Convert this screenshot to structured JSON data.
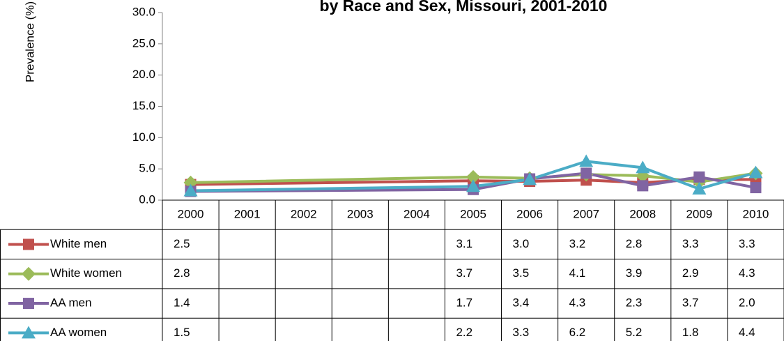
{
  "chart_data": {
    "type": "line",
    "title": "by Race and Sex, Missouri, 2001-2010",
    "y_label": "Prevalence (%)",
    "categories": [
      "2000",
      "2001",
      "2002",
      "2003",
      "2004",
      "2005",
      "2006",
      "2007",
      "2008",
      "2009",
      "2010"
    ],
    "series": [
      {
        "name": "White men",
        "color": "#c0504d",
        "marker": "square",
        "values": [
          2.5,
          null,
          null,
          null,
          null,
          3.1,
          3.0,
          3.2,
          2.8,
          3.3,
          3.3
        ],
        "value_labels": [
          "2.5",
          null,
          null,
          null,
          null,
          "3.1",
          "3.0",
          "3.2",
          "2.8",
          "3.3",
          "3.3"
        ]
      },
      {
        "name": "White women",
        "color": "#9bbb59",
        "marker": "diamond",
        "values": [
          2.8,
          null,
          null,
          null,
          null,
          3.7,
          3.5,
          4.1,
          3.9,
          2.9,
          4.3
        ],
        "value_labels": [
          "2.8",
          null,
          null,
          null,
          null,
          "3.7",
          "3.5",
          "4.1",
          "3.9",
          "2.9",
          "4.3"
        ]
      },
      {
        "name": "AA men",
        "color": "#8064a2",
        "marker": "square",
        "values": [
          1.4,
          null,
          null,
          null,
          null,
          1.7,
          3.4,
          4.3,
          2.3,
          3.7,
          2.0
        ],
        "value_labels": [
          "1.4",
          null,
          null,
          null,
          null,
          "1.7",
          "3.4",
          "4.3",
          "2.3",
          "3.7",
          "2.0"
        ]
      },
      {
        "name": "AA women",
        "color": "#4bacc6",
        "marker": "triangle",
        "values": [
          1.5,
          null,
          null,
          null,
          null,
          2.2,
          3.3,
          6.2,
          5.2,
          1.8,
          4.4
        ],
        "value_labels": [
          "1.5",
          null,
          null,
          null,
          null,
          "2.2",
          "3.3",
          "6.2",
          "5.2",
          "1.8",
          "4.4"
        ]
      }
    ],
    "ylim": [
      0,
      30
    ],
    "yticks": [
      {
        "value": 0,
        "label": "0.0"
      },
      {
        "value": 5,
        "label": "5.0"
      },
      {
        "value": 10,
        "label": "10.0"
      },
      {
        "value": 15,
        "label": "15.0"
      },
      {
        "value": 20,
        "label": "20.0"
      },
      {
        "value": 25,
        "label": "25.0"
      },
      {
        "value": 30,
        "label": "30.0"
      }
    ],
    "connect_gaps": true
  }
}
